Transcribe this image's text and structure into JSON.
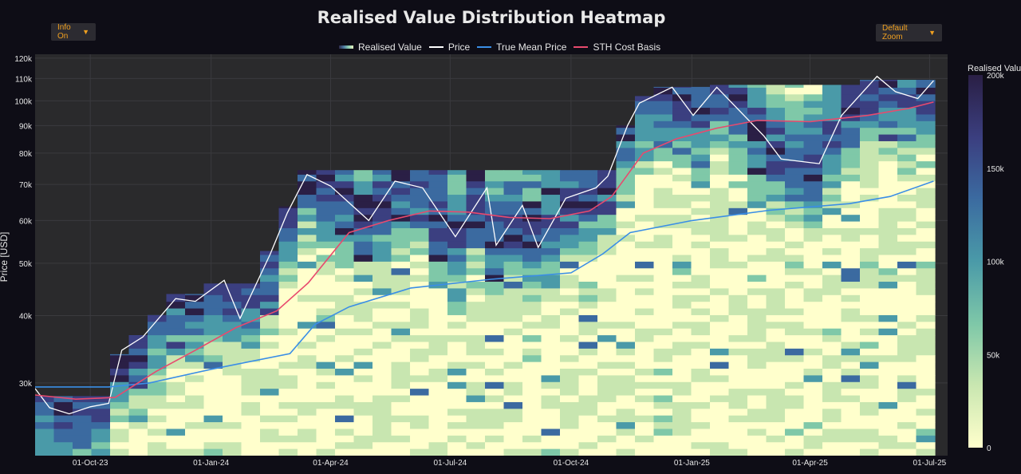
{
  "header": {
    "title": "Realised Value Distribution Heatmap",
    "info_dropdown": "Info On",
    "zoom_dropdown": "Default Zoom"
  },
  "legend": {
    "items": [
      {
        "label": "Realised Value",
        "color": "gradient"
      },
      {
        "label": "Price",
        "color": "#ffffff"
      },
      {
        "label": "True Mean Price",
        "color": "#3a8ee6"
      },
      {
        "label": "STH Cost Basis",
        "color": "#e84a6e"
      }
    ]
  },
  "chart_data": {
    "type": "heatmap",
    "title": "Realised Value Distribution Heatmap",
    "ylabel": "Price [USD]",
    "yscale": "log",
    "ylim": [
      22000,
      122000
    ],
    "xlim": [
      "2023-08-20",
      "2025-07-05"
    ],
    "x_ticks": [
      {
        "date": "2023-10-01",
        "label": "01-Oct-23"
      },
      {
        "date": "2024-01-01",
        "label": "01-Jan-24"
      },
      {
        "date": "2024-04-01",
        "label": "01-Apr-24"
      },
      {
        "date": "2024-07-01",
        "label": "01-Jul-24"
      },
      {
        "date": "2024-10-01",
        "label": "01-Oct-24"
      },
      {
        "date": "2025-01-01",
        "label": "01-Jan-25"
      },
      {
        "date": "2025-04-01",
        "label": "01-Apr-25"
      },
      {
        "date": "2025-07-01",
        "label": "01-Jul-25"
      }
    ],
    "y_ticks": [
      {
        "value": 30000,
        "label": "30k"
      },
      {
        "value": 40000,
        "label": "40k"
      },
      {
        "value": 50000,
        "label": "50k"
      },
      {
        "value": 60000,
        "label": "60k"
      },
      {
        "value": 70000,
        "label": "70k"
      },
      {
        "value": 80000,
        "label": "80k"
      },
      {
        "value": 90000,
        "label": "90k"
      },
      {
        "value": 100000,
        "label": "100k"
      },
      {
        "value": 110000,
        "label": "110k"
      },
      {
        "value": 120000,
        "label": "120k"
      }
    ],
    "colorbar": {
      "title": "Realised Value",
      "range": [
        0,
        200000
      ],
      "ticks": [
        {
          "value": 0,
          "label": "0"
        },
        {
          "value": 50000,
          "label": "50k"
        },
        {
          "value": 100000,
          "label": "100k"
        },
        {
          "value": 150000,
          "label": "150k"
        },
        {
          "value": 200000,
          "label": "200k"
        }
      ],
      "colors": [
        "#ffffcc",
        "#c8e6b0",
        "#7fc8a8",
        "#4a9aa8",
        "#3b6aa0",
        "#3b3f80",
        "#2a1f45"
      ]
    },
    "series": [
      {
        "name": "Price",
        "color": "#ffffff",
        "points": [
          [
            "2023-08-20",
            29300
          ],
          [
            "2023-08-31",
            27000
          ],
          [
            "2023-09-15",
            26300
          ],
          [
            "2023-10-01",
            27100
          ],
          [
            "2023-10-15",
            27500
          ],
          [
            "2023-10-25",
            34500
          ],
          [
            "2023-11-10",
            36500
          ],
          [
            "2023-12-05",
            43000
          ],
          [
            "2023-12-20",
            42500
          ],
          [
            "2024-01-11",
            46500
          ],
          [
            "2024-01-23",
            39500
          ],
          [
            "2024-02-15",
            52000
          ],
          [
            "2024-02-28",
            62000
          ],
          [
            "2024-03-14",
            73000
          ],
          [
            "2024-04-01",
            69500
          ],
          [
            "2024-04-30",
            60000
          ],
          [
            "2024-05-20",
            71000
          ],
          [
            "2024-06-10",
            69000
          ],
          [
            "2024-07-05",
            56000
          ],
          [
            "2024-07-29",
            69000
          ],
          [
            "2024-08-05",
            54000
          ],
          [
            "2024-08-25",
            64000
          ],
          [
            "2024-09-06",
            53500
          ],
          [
            "2024-09-27",
            66000
          ],
          [
            "2024-10-20",
            69000
          ],
          [
            "2024-10-29",
            72500
          ],
          [
            "2024-11-13",
            90000
          ],
          [
            "2024-11-22",
            99000
          ],
          [
            "2024-12-17",
            106000
          ],
          [
            "2025-01-02",
            94000
          ],
          [
            "2025-01-20",
            106000
          ],
          [
            "2025-02-25",
            86000
          ],
          [
            "2025-03-10",
            78000
          ],
          [
            "2025-04-08",
            76500
          ],
          [
            "2025-04-25",
            94000
          ],
          [
            "2025-05-22",
            111000
          ],
          [
            "2025-06-05",
            104000
          ],
          [
            "2025-06-22",
            101000
          ],
          [
            "2025-07-04",
            109000
          ]
        ]
      },
      {
        "name": "True Mean Price",
        "color": "#3a8ee6",
        "points": [
          [
            "2023-08-20",
            29500
          ],
          [
            "2023-10-15",
            29500
          ],
          [
            "2023-11-15",
            30000
          ],
          [
            "2024-01-01",
            31800
          ],
          [
            "2024-03-01",
            34000
          ],
          [
            "2024-03-20",
            38500
          ],
          [
            "2024-04-15",
            41500
          ],
          [
            "2024-06-01",
            45000
          ],
          [
            "2024-08-01",
            46700
          ],
          [
            "2024-10-01",
            48000
          ],
          [
            "2024-10-25",
            52000
          ],
          [
            "2024-11-15",
            57000
          ],
          [
            "2025-01-01",
            60000
          ],
          [
            "2025-03-01",
            62700
          ],
          [
            "2025-05-01",
            64500
          ],
          [
            "2025-06-01",
            66500
          ],
          [
            "2025-07-04",
            71000
          ]
        ]
      },
      {
        "name": "STH Cost Basis",
        "color": "#e84a6e",
        "points": [
          [
            "2023-08-20",
            28500
          ],
          [
            "2023-09-20",
            28000
          ],
          [
            "2023-10-20",
            28200
          ],
          [
            "2023-11-20",
            31500
          ],
          [
            "2023-12-20",
            34500
          ],
          [
            "2024-01-20",
            38000
          ],
          [
            "2024-02-20",
            40800
          ],
          [
            "2024-03-15",
            46000
          ],
          [
            "2024-04-15",
            57000
          ],
          [
            "2024-05-15",
            60000
          ],
          [
            "2024-06-15",
            62500
          ],
          [
            "2024-07-15",
            62200
          ],
          [
            "2024-08-15",
            60800
          ],
          [
            "2024-09-15",
            60500
          ],
          [
            "2024-10-15",
            62500
          ],
          [
            "2024-11-01",
            66500
          ],
          [
            "2024-11-25",
            80000
          ],
          [
            "2024-12-20",
            85000
          ],
          [
            "2025-01-20",
            89000
          ],
          [
            "2025-02-20",
            92000
          ],
          [
            "2025-04-01",
            91500
          ],
          [
            "2025-05-15",
            94000
          ],
          [
            "2025-06-15",
            96800
          ],
          [
            "2025-07-04",
            99500
          ]
        ]
      }
    ]
  }
}
